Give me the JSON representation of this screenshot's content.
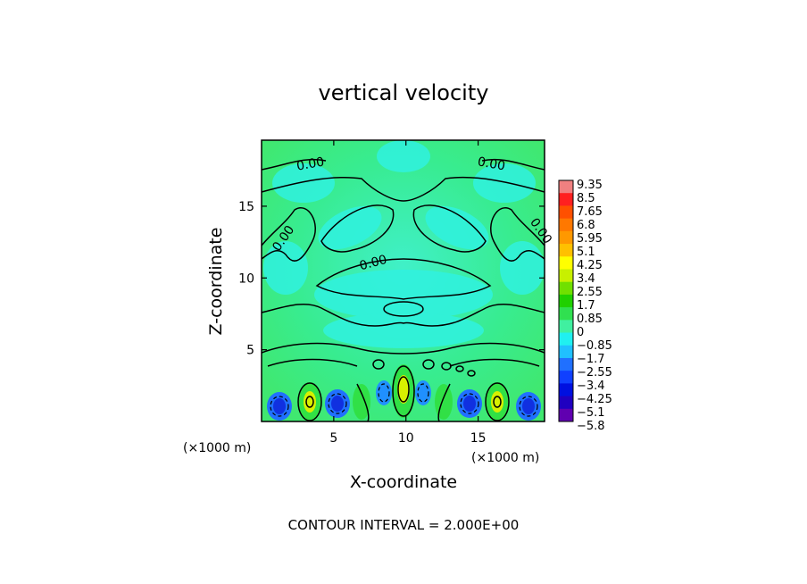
{
  "chart_data": {
    "type": "heatmap",
    "title": "vertical velocity",
    "xlabel": "X-coordinate",
    "ylabel": "Z-coordinate",
    "x_unit_label": "(×1000 m)",
    "z_unit_label": "(×1000 m)",
    "xlim": [
      0,
      19.6
    ],
    "ylim": [
      0,
      19.6
    ],
    "x_ticks": [
      "5",
      "10",
      "15"
    ],
    "x_tick_values": [
      5,
      10,
      15
    ],
    "y_ticks": [
      "5",
      "10",
      "15"
    ],
    "y_tick_values": [
      5,
      10,
      15
    ],
    "contour_labels": [
      "0.00",
      "0.00",
      "0.00",
      "0.00",
      "0.00"
    ],
    "colorbar": {
      "labels": [
        "9.35",
        "8.5",
        "7.65",
        "6.8",
        "5.95",
        "5.1",
        "4.25",
        "3.4",
        "2.55",
        "1.7",
        "0.85",
        "0",
        "-0.85",
        "-1.7",
        "-2.55",
        "-3.4",
        "-4.25",
        "-5.1",
        "-5.8"
      ],
      "colors": [
        "#f08080",
        "#ff2020",
        "#ff5000",
        "#ff7800",
        "#ff9800",
        "#ffc000",
        "#ffff00",
        "#c8f000",
        "#70e000",
        "#20d000",
        "#30e050",
        "#40f0a0",
        "#20f0f0",
        "#20c0ff",
        "#2070ff",
        "#1040ff",
        "#0010e0",
        "#2000c0",
        "#6000b0"
      ]
    },
    "contour_interval_text": "CONTOUR INTERVAL = 2.000E+00",
    "grid": false
  }
}
